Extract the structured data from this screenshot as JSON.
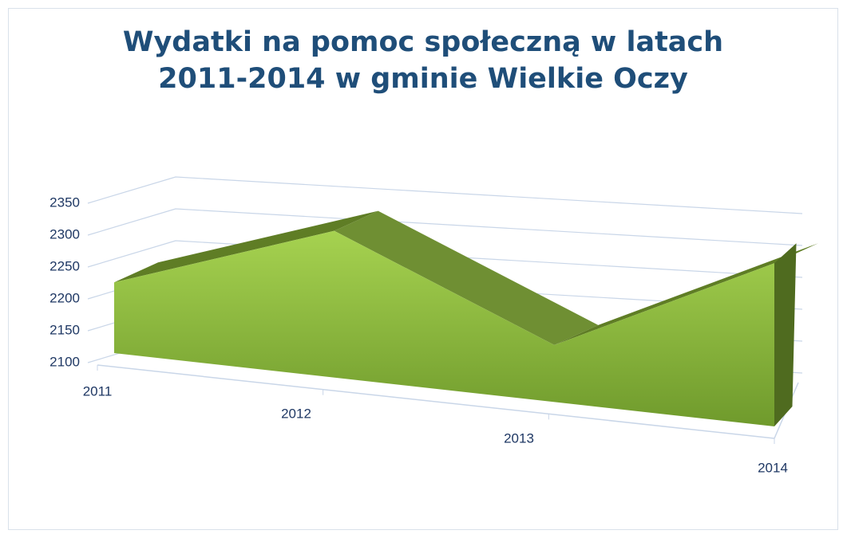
{
  "chart_data": {
    "type": "area3d",
    "title": "Wydatki na pomoc społeczną w latach 2011-2014 w gminie Wielkie Oczy",
    "categories": [
      "2011",
      "2012",
      "2013",
      "2014"
    ],
    "values": [
      2220,
      2300,
      2165,
      2260
    ],
    "color": "#8fbf3f",
    "ylim": [
      2100,
      2350
    ],
    "yticks": [
      2100,
      2150,
      2200,
      2250,
      2300,
      2350
    ],
    "grid": true
  }
}
